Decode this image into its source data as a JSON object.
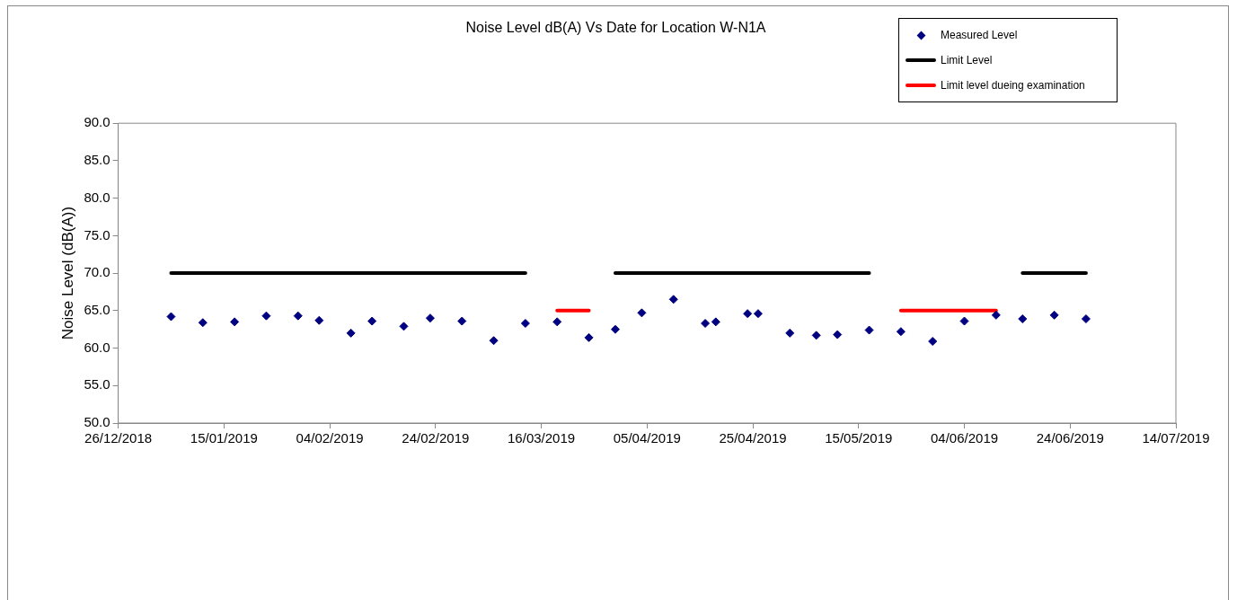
{
  "chart_data": {
    "type": "scatter",
    "title": "Noise Level dB(A) Vs Date for Location W-N1A",
    "ylabel": "Noise Level (dB(A))",
    "xlim": [
      "2018-12-26",
      "2019-07-14"
    ],
    "xticks": [
      {
        "value": "2018-12-26",
        "label": "26/12/2018"
      },
      {
        "value": "2019-01-15",
        "label": "15/01/2019"
      },
      {
        "value": "2019-02-04",
        "label": "04/02/2019"
      },
      {
        "value": "2019-02-24",
        "label": "24/02/2019"
      },
      {
        "value": "2019-03-16",
        "label": "16/03/2019"
      },
      {
        "value": "2019-04-05",
        "label": "05/04/2019"
      },
      {
        "value": "2019-04-25",
        "label": "25/04/2019"
      },
      {
        "value": "2019-05-15",
        "label": "15/05/2019"
      },
      {
        "value": "2019-06-04",
        "label": "04/06/2019"
      },
      {
        "value": "2019-06-24",
        "label": "24/06/2019"
      },
      {
        "value": "2019-07-14",
        "label": "14/07/2019"
      }
    ],
    "ylim": [
      50,
      90
    ],
    "yticks": [
      {
        "value": 50,
        "label": "50.0"
      },
      {
        "value": 55,
        "label": "55.0"
      },
      {
        "value": 60,
        "label": "60.0"
      },
      {
        "value": 65,
        "label": "65.0"
      },
      {
        "value": 70,
        "label": "70.0"
      },
      {
        "value": 75,
        "label": "75.0"
      },
      {
        "value": 80,
        "label": "80.0"
      },
      {
        "value": 85,
        "label": "85.0"
      },
      {
        "value": 90,
        "label": "90.0"
      }
    ],
    "grid": false,
    "legend": "top right",
    "series": [
      {
        "name": "Measured Level",
        "marker": "diamond",
        "color": "#000080",
        "x": [
          "2019-01-05",
          "2019-01-11",
          "2019-01-17",
          "2019-01-23",
          "2019-01-29",
          "2019-02-02",
          "2019-02-08",
          "2019-02-12",
          "2019-02-18",
          "2019-02-23",
          "2019-03-01",
          "2019-03-07",
          "2019-03-13",
          "2019-03-19",
          "2019-03-25",
          "2019-03-30",
          "2019-04-04",
          "2019-04-10",
          "2019-04-16",
          "2019-04-18",
          "2019-04-24",
          "2019-04-26",
          "2019-05-02",
          "2019-05-07",
          "2019-05-11",
          "2019-05-17",
          "2019-05-23",
          "2019-05-29",
          "2019-06-04",
          "2019-06-10",
          "2019-06-15",
          "2019-06-21",
          "2019-06-27"
        ],
        "values": [
          64.2,
          63.4,
          63.5,
          64.3,
          64.3,
          63.7,
          62.0,
          63.6,
          62.9,
          64.0,
          63.6,
          61.0,
          63.3,
          63.5,
          61.4,
          62.5,
          64.7,
          66.5,
          63.3,
          63.5,
          64.6,
          64.6,
          62.0,
          61.7,
          61.8,
          62.4,
          62.2,
          60.9,
          63.6,
          64.4,
          63.9,
          64.4,
          63.9
        ]
      },
      {
        "name": "Limit Level",
        "type": "line",
        "marker": "none",
        "color": "#000000",
        "x": [
          "2019-01-05",
          "2019-03-13",
          "2019-03-20",
          "2019-03-30",
          "2019-05-17",
          "2019-06-01",
          "2019-06-15",
          "2019-06-27"
        ],
        "values": [
          70,
          70,
          null,
          70,
          70,
          null,
          70,
          70
        ]
      },
      {
        "name": "Limit level dueing examination",
        "type": "line",
        "marker": "none",
        "color": "#ff0000",
        "x": [
          "2019-03-19",
          "2019-03-25",
          "2019-04-10",
          "2019-05-23",
          "2019-06-10"
        ],
        "values": [
          65,
          65,
          null,
          65,
          65
        ]
      }
    ]
  }
}
